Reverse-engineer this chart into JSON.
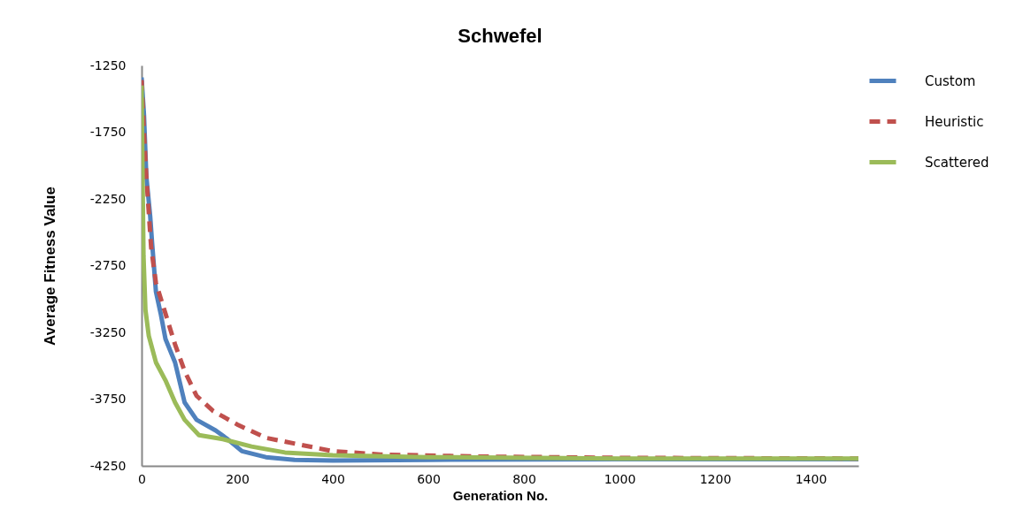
{
  "chart_data": {
    "type": "line",
    "title": "Schwefel",
    "xlabel": "Generation No.",
    "ylabel": "Average Fitness Value",
    "xlim": [
      0,
      1500
    ],
    "xticks": [
      0,
      200,
      400,
      600,
      800,
      1000,
      1200,
      1400
    ],
    "ylim": [
      -4250,
      -1250
    ],
    "yticks": [
      -4250,
      -3750,
      -3250,
      -2750,
      -2250,
      -1750,
      -1250
    ],
    "grid": false,
    "legend": "right",
    "series": [
      {
        "name": "Custom",
        "color": "#4f81bd",
        "line_style": "solid",
        "x": [
          0,
          5,
          10,
          18,
          22,
          30,
          40,
          50,
          70,
          90,
          115,
          155,
          180,
          210,
          260,
          320,
          400,
          600,
          1000,
          1500
        ],
        "values": [
          -1340,
          -1620,
          -2085,
          -2380,
          -2580,
          -2945,
          -3110,
          -3300,
          -3475,
          -3775,
          -3905,
          -3985,
          -4050,
          -4140,
          -4185,
          -4205,
          -4210,
          -4205,
          -4200,
          -4200
        ]
      },
      {
        "name": "Heuristic",
        "color": "#c0504d",
        "line_style": "dashed",
        "x": [
          0,
          5,
          10,
          20,
          30,
          50,
          70,
          90,
          115,
          150,
          200,
          260,
          330,
          400,
          500,
          700,
          1000,
          1500
        ],
        "values": [
          -1360,
          -1750,
          -2085,
          -2615,
          -2880,
          -3110,
          -3340,
          -3540,
          -3725,
          -3840,
          -3940,
          -4040,
          -4090,
          -4140,
          -4165,
          -4180,
          -4190,
          -4195
        ]
      },
      {
        "name": "Scattered",
        "color": "#9bbb59",
        "line_style": "solid",
        "x": [
          0,
          2,
          4,
          8,
          15,
          30,
          50,
          70,
          90,
          120,
          170,
          230,
          300,
          400,
          600,
          1000,
          1500
        ],
        "values": [
          -1400,
          -2085,
          -2680,
          -3080,
          -3275,
          -3475,
          -3610,
          -3775,
          -3905,
          -4020,
          -4050,
          -4105,
          -4150,
          -4170,
          -4185,
          -4195,
          -4195
        ]
      }
    ]
  }
}
